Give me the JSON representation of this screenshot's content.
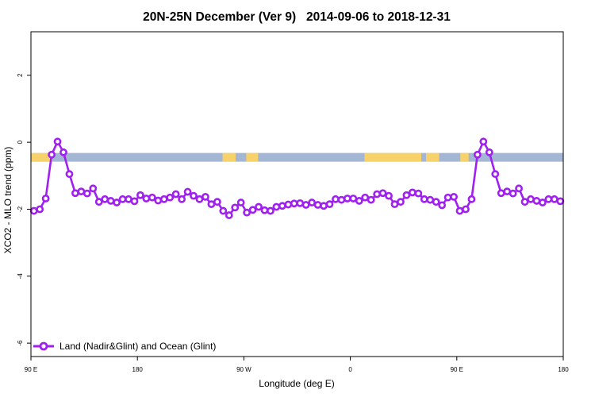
{
  "chart_data": {
    "type": "line",
    "title": "20N-25N December (Ver 9)   2014-09-06 to 2018-12-31",
    "xlabel": "Longitude (deg E)",
    "ylabel": "XCO2 - MLO trend (ppm)",
    "xlim": [
      90,
      540
    ],
    "ylim": [
      -6.4,
      3.3
    ],
    "x_ticks": [
      {
        "value": 90,
        "label": "90 E"
      },
      {
        "value": 180,
        "label": "180"
      },
      {
        "value": 270,
        "label": "90 W"
      },
      {
        "value": 360,
        "label": "0"
      },
      {
        "value": 450,
        "label": "90 E"
      },
      {
        "value": 540,
        "label": "180"
      }
    ],
    "y_ticks": [
      {
        "value": 2,
        "label": "2"
      },
      {
        "value": 0,
        "label": "0"
      },
      {
        "value": -2,
        "label": "-2"
      },
      {
        "value": -4,
        "label": "-4"
      },
      {
        "value": -6,
        "label": "-6"
      }
    ],
    "grid": false,
    "legend_position": "bottom-left",
    "surface_band": {
      "y_range": [
        -0.58,
        -0.32
      ],
      "ocean_color": "#a3b6d4",
      "land_color": "#f7d26b",
      "land_x_ranges": [
        [
          90,
          108
        ],
        [
          252,
          263
        ],
        [
          272,
          282
        ],
        [
          372,
          420
        ],
        [
          424,
          435
        ],
        [
          453,
          460
        ]
      ]
    },
    "series": [
      {
        "name": "Land (Nadir&Glint) and Ocean (Glint)",
        "color": "#a020f0",
        "x": [
          92.5,
          97.5,
          102.5,
          107.5,
          112.5,
          117.5,
          122.5,
          127.5,
          132.5,
          137.5,
          142.5,
          147.5,
          152.5,
          157.5,
          162.5,
          167.5,
          172.5,
          177.5,
          182.5,
          187.5,
          192.5,
          197.5,
          202.5,
          207.5,
          212.5,
          217.5,
          222.5,
          227.5,
          232.5,
          237.5,
          242.5,
          247.5,
          252.5,
          257.5,
          262.5,
          267.5,
          272.5,
          277.5,
          282.5,
          287.5,
          292.5,
          297.5,
          302.5,
          307.5,
          312.5,
          317.5,
          322.5,
          327.5,
          332.5,
          337.5,
          342.5,
          347.5,
          352.5,
          357.5,
          362.5,
          367.5,
          372.5,
          377.5,
          382.5,
          387.5,
          392.5,
          397.5,
          402.5,
          407.5,
          412.5,
          417.5,
          422.5,
          427.5,
          432.5,
          437.5,
          442.5,
          447.5,
          452.5,
          457.5,
          462.5,
          467.5,
          472.5,
          477.5,
          482.5,
          487.5,
          492.5,
          497.5,
          502.5,
          507.5,
          512.5,
          517.5,
          522.5,
          527.5,
          532.5,
          537.5
        ],
        "y": [
          -2.05,
          -2.0,
          -1.68,
          -0.37,
          0.02,
          -0.3,
          -0.95,
          -1.52,
          -1.47,
          -1.53,
          -1.38,
          -1.78,
          -1.7,
          -1.75,
          -1.8,
          -1.7,
          -1.7,
          -1.76,
          -1.58,
          -1.68,
          -1.65,
          -1.74,
          -1.7,
          -1.65,
          -1.55,
          -1.7,
          -1.48,
          -1.6,
          -1.7,
          -1.63,
          -1.85,
          -1.78,
          -2.05,
          -2.18,
          -1.95,
          -1.8,
          -2.1,
          -2.02,
          -1.93,
          -2.03,
          -2.05,
          -1.93,
          -1.9,
          -1.86,
          -1.83,
          -1.82,
          -1.87,
          -1.8,
          -1.87,
          -1.9,
          -1.85,
          -1.7,
          -1.72,
          -1.68,
          -1.68,
          -1.75,
          -1.65,
          -1.72,
          -1.55,
          -1.52,
          -1.6,
          -1.85,
          -1.78,
          -1.58,
          -1.5,
          -1.53,
          -1.7,
          -1.72,
          -1.78,
          -1.88,
          -1.65,
          -1.63,
          -2.05,
          -2.0,
          -1.7,
          -0.37,
          0.02,
          -0.3,
          -0.95,
          -1.52,
          -1.47,
          -1.53,
          -1.38,
          -1.78,
          -1.7,
          -1.75,
          -1.8,
          -1.7,
          -1.7,
          -1.76
        ]
      }
    ]
  }
}
